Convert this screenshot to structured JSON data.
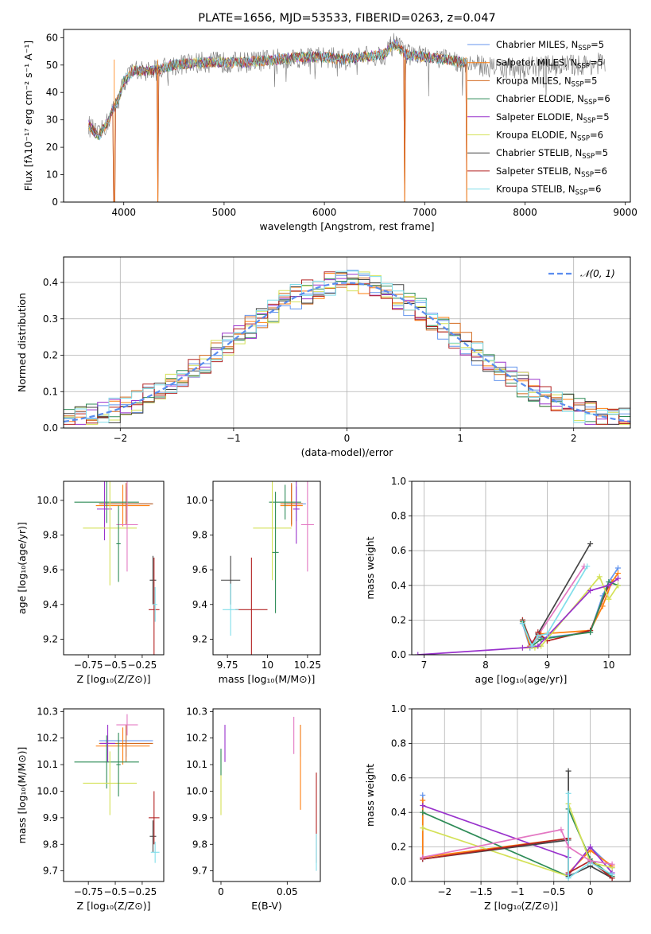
{
  "colors": [
    "#6495ed",
    "#ff7f0e",
    "#d2691e",
    "#2e8b57",
    "#9932cc",
    "#d4e157",
    "#444444",
    "#b22222",
    "#80deea",
    "#e377c2"
  ],
  "chart_data": [
    {
      "id": "spectrum",
      "type": "line",
      "title": "PLATE=1656, MJD=53533, FIBERID=0263, z=0.047",
      "xlabel": "wavelength [Angstrom, rest frame]",
      "ylabel": "Flux [fλ10⁻¹⁷ erg cm⁻² s⁻¹ A⁻¹]",
      "xlim": [
        3400,
        9050
      ],
      "ylim": [
        0,
        63
      ],
      "xticks": [
        4000,
        5000,
        6000,
        7000,
        8000,
        9000
      ],
      "yticks": [
        0,
        10,
        20,
        30,
        40,
        50,
        60
      ],
      "legend": "top-right",
      "series_names": [
        "Chabrier MILES, N",
        "Salpeter MILES, N",
        "Kroupa MILES, N",
        "Chabrier ELODIE, N",
        "Salpeter ELODIE, N",
        "Kroupa ELODIE, N",
        "Chabrier STELIB, N",
        "Salpeter STELIB, N",
        "Kroupa STELIB, N"
      ],
      "series_sub": "SSP",
      "series_n": [
        "=5",
        "=5",
        "=5",
        "=6",
        "=5",
        "=6",
        "=5",
        "=6",
        "=6"
      ],
      "continuum": [
        [
          3650,
          28
        ],
        [
          3750,
          24
        ],
        [
          3850,
          30
        ],
        [
          3950,
          38
        ],
        [
          4000,
          44
        ],
        [
          4100,
          48
        ],
        [
          4300,
          48
        ],
        [
          4500,
          50
        ],
        [
          4800,
          51
        ],
        [
          5000,
          51
        ],
        [
          5200,
          51
        ],
        [
          5500,
          52
        ],
        [
          5800,
          53
        ],
        [
          6000,
          53
        ],
        [
          6200,
          52
        ],
        [
          6400,
          53
        ],
        [
          6600,
          54
        ],
        [
          6700,
          58
        ],
        [
          6800,
          54
        ],
        [
          7000,
          53
        ],
        [
          7200,
          52
        ],
        [
          7400,
          51
        ],
        [
          7500,
          50
        ],
        [
          7800,
          49
        ],
        [
          8000,
          49
        ],
        [
          8300,
          50
        ],
        [
          8600,
          50
        ],
        [
          8800,
          51
        ]
      ],
      "data_range": [
        3650,
        8800
      ],
      "model_range": [
        3650,
        7420
      ],
      "drops": [
        3905,
        4340,
        6800,
        7420
      ]
    },
    {
      "id": "residuals",
      "type": "bar",
      "xlabel": "(data-model)/error",
      "ylabel": "Normed distribution",
      "xlim": [
        -2.5,
        2.5
      ],
      "ylim": [
        0,
        0.47
      ],
      "xticks": [
        -2,
        -1,
        0,
        1,
        2
      ],
      "yticks": [
        0.0,
        0.1,
        0.2,
        0.3,
        0.4
      ],
      "legend_label": "𝒩(0, 1)",
      "bin_width": 0.1
    },
    {
      "id": "age_vs_Z",
      "type": "scatter",
      "xlabel": "Z [log₁₀(Z/Z⊙)]",
      "ylabel": "age  [log₁₀(age/yr)]",
      "xlim": [
        -0.98,
        -0.05
      ],
      "ylim": [
        9.11,
        10.11
      ],
      "xticks": [
        -0.75,
        -0.5,
        -0.25
      ],
      "yticks": [
        9.2,
        9.4,
        9.6,
        9.8,
        10.0
      ],
      "points": [
        {
          "x": -0.4,
          "y": 9.98,
          "xerr": 0.25,
          "yerr": 0.1,
          "c": 0
        },
        {
          "x": -0.43,
          "y": 9.97,
          "xerr": 0.25,
          "yerr": 0.12,
          "c": 1
        },
        {
          "x": -0.4,
          "y": 9.98,
          "xerr": 0.25,
          "yerr": 0.12,
          "c": 2
        },
        {
          "x": -0.58,
          "y": 9.99,
          "xerr": 0.3,
          "yerr": 0.12,
          "c": 3
        },
        {
          "x": -0.6,
          "y": 9.95,
          "xerr": 0.07,
          "yerr": 0.18,
          "c": 4
        },
        {
          "x": -0.55,
          "y": 9.84,
          "xerr": 0.25,
          "yerr": 0.33,
          "c": 5
        },
        {
          "x": -0.15,
          "y": 9.54,
          "xerr": 0.03,
          "yerr": 0.14,
          "c": 6
        },
        {
          "x": -0.14,
          "y": 9.37,
          "xerr": 0.05,
          "yerr": 0.3,
          "c": 7
        },
        {
          "x": -0.13,
          "y": 9.4,
          "xerr": 0.02,
          "yerr": 0.1,
          "c": 8
        },
        {
          "x": -0.39,
          "y": 9.86,
          "xerr": 0.1,
          "yerr": 0.27,
          "c": 9
        },
        {
          "x": -0.47,
          "y": 9.75,
          "xerr": 0.02,
          "yerr": 0.22,
          "c": 3
        }
      ]
    },
    {
      "id": "age_vs_mass",
      "type": "scatter",
      "xlabel": "mass [log₁₀(M/M⊙)]",
      "ylabel": "",
      "xlim": [
        9.66,
        10.33
      ],
      "ylim": [
        9.11,
        10.11
      ],
      "xticks": [
        9.75,
        10.0,
        10.25
      ],
      "yticks": [
        9.2,
        9.4,
        9.6,
        9.8,
        10.0
      ],
      "points": [
        {
          "x": 10.18,
          "y": 9.98,
          "xerr": 0.06,
          "yerr": 0.1,
          "c": 0
        },
        {
          "x": 10.15,
          "y": 9.97,
          "xerr": 0.07,
          "yerr": 0.12,
          "c": 1
        },
        {
          "x": 10.15,
          "y": 9.98,
          "xerr": 0.07,
          "yerr": 0.12,
          "c": 2
        },
        {
          "x": 10.11,
          "y": 9.99,
          "xerr": 0.1,
          "yerr": 0.1,
          "c": 3
        },
        {
          "x": 10.18,
          "y": 9.95,
          "xerr": 0.02,
          "yerr": 0.2,
          "c": 4
        },
        {
          "x": 10.03,
          "y": 9.84,
          "xerr": 0.12,
          "yerr": 0.3,
          "c": 5
        },
        {
          "x": 9.77,
          "y": 9.54,
          "xerr": 0.06,
          "yerr": 0.14,
          "c": 6
        },
        {
          "x": 9.9,
          "y": 9.37,
          "xerr": 0.1,
          "yerr": 0.3,
          "c": 7
        },
        {
          "x": 9.77,
          "y": 9.37,
          "xerr": 0.05,
          "yerr": 0.15,
          "c": 8
        },
        {
          "x": 10.25,
          "y": 9.86,
          "xerr": 0.04,
          "yerr": 0.27,
          "c": 9
        },
        {
          "x": 10.05,
          "y": 9.7,
          "xerr": 0.02,
          "yerr": 0.35,
          "c": 3
        }
      ]
    },
    {
      "id": "massweight_vs_age",
      "type": "line",
      "xlabel": "age  [log₁₀(age/yr)]",
      "ylabel": "mass weight",
      "xlim": [
        6.8,
        10.35
      ],
      "ylim": [
        0,
        1.0
      ],
      "xticks": [
        7,
        8,
        9,
        10
      ],
      "yticks": [
        0.0,
        0.2,
        0.4,
        0.6,
        0.8,
        1.0
      ],
      "lines": [
        {
          "c": 6,
          "pts": [
            [
              8.6,
              0.2
            ],
            [
              8.75,
              0.05
            ],
            [
              8.85,
              0.12
            ],
            [
              9.7,
              0.64
            ]
          ]
        },
        {
          "c": 9,
          "pts": [
            [
              8.6,
              0.18
            ],
            [
              8.75,
              0.07
            ],
            [
              8.85,
              0.11
            ],
            [
              9.6,
              0.51
            ]
          ]
        },
        {
          "c": 0,
          "pts": [
            [
              8.6,
              0.18
            ],
            [
              8.72,
              0.04
            ],
            [
              8.85,
              0.1
            ],
            [
              9.0,
              0.1
            ],
            [
              9.7,
              0.13
            ],
            [
              9.9,
              0.34
            ],
            [
              10.0,
              0.42
            ],
            [
              10.15,
              0.5
            ]
          ]
        },
        {
          "c": 1,
          "pts": [
            [
              8.6,
              0.19
            ],
            [
              8.72,
              0.05
            ],
            [
              8.9,
              0.12
            ],
            [
              9.7,
              0.14
            ],
            [
              9.9,
              0.28
            ],
            [
              10.05,
              0.42
            ],
            [
              10.15,
              0.47
            ]
          ]
        },
        {
          "c": 7,
          "pts": [
            [
              8.6,
              0.2
            ],
            [
              8.75,
              0.06
            ],
            [
              8.85,
              0.13
            ],
            [
              9.0,
              0.08
            ],
            [
              9.7,
              0.14
            ],
            [
              10.0,
              0.4
            ],
            [
              10.15,
              0.44
            ]
          ]
        },
        {
          "c": 3,
          "pts": [
            [
              8.6,
              0.19
            ],
            [
              8.75,
              0.05
            ],
            [
              8.9,
              0.09
            ],
            [
              9.7,
              0.13
            ],
            [
              10.0,
              0.42
            ],
            [
              10.15,
              0.4
            ]
          ]
        },
        {
          "c": 5,
          "pts": [
            [
              8.6,
              0.04
            ],
            [
              8.8,
              0.04
            ],
            [
              8.9,
              0.05
            ],
            [
              9.85,
              0.45
            ],
            [
              10.0,
              0.32
            ],
            [
              10.15,
              0.4
            ]
          ]
        },
        {
          "c": 4,
          "pts": [
            [
              6.9,
              0.0
            ],
            [
              8.6,
              0.04
            ],
            [
              8.85,
              0.05
            ],
            [
              9.7,
              0.37
            ],
            [
              10.0,
              0.4
            ],
            [
              10.15,
              0.44
            ]
          ]
        },
        {
          "c": 8,
          "pts": [
            [
              8.6,
              0.18
            ],
            [
              8.75,
              0.05
            ],
            [
              8.85,
              0.11
            ],
            [
              9.0,
              0.12
            ],
            [
              9.65,
              0.51
            ]
          ]
        }
      ]
    },
    {
      "id": "mass_vs_Z",
      "type": "scatter",
      "xlabel": "Z [log₁₀(Z/Z⊙)]",
      "ylabel": "mass [log₁₀(M/M⊙)]",
      "xlim": [
        -0.98,
        -0.05
      ],
      "ylim": [
        9.66,
        10.31
      ],
      "xticks": [
        -0.75,
        -0.5,
        -0.25
      ],
      "yticks": [
        9.7,
        9.8,
        9.9,
        10.0,
        10.1,
        10.2,
        10.3
      ],
      "points": [
        {
          "x": -0.4,
          "y": 10.19,
          "xerr": 0.25,
          "yerr": 0.06,
          "c": 0
        },
        {
          "x": -0.43,
          "y": 10.17,
          "xerr": 0.25,
          "yerr": 0.07,
          "c": 1
        },
        {
          "x": -0.4,
          "y": 10.18,
          "xerr": 0.25,
          "yerr": 0.07,
          "c": 2
        },
        {
          "x": -0.58,
          "y": 10.11,
          "xerr": 0.3,
          "yerr": 0.1,
          "c": 3
        },
        {
          "x": -0.57,
          "y": 10.18,
          "xerr": 0.07,
          "yerr": 0.07,
          "c": 4
        },
        {
          "x": -0.55,
          "y": 10.03,
          "xerr": 0.25,
          "yerr": 0.12,
          "c": 5
        },
        {
          "x": -0.15,
          "y": 9.83,
          "xerr": 0.03,
          "yerr": 0.06,
          "c": 6
        },
        {
          "x": -0.14,
          "y": 9.9,
          "xerr": 0.05,
          "yerr": 0.1,
          "c": 7
        },
        {
          "x": -0.13,
          "y": 9.77,
          "xerr": 0.04,
          "yerr": 0.04,
          "c": 8
        },
        {
          "x": -0.39,
          "y": 10.25,
          "xerr": 0.1,
          "yerr": 0.04,
          "c": 9
        },
        {
          "x": -0.47,
          "y": 10.1,
          "xerr": 0.02,
          "yerr": 0.12,
          "c": 3
        }
      ]
    },
    {
      "id": "mass_vs_ebv",
      "type": "scatter",
      "xlabel": "E(B-V)",
      "ylabel": "",
      "xlim": [
        -0.006,
        0.075
      ],
      "ylim": [
        9.66,
        10.31
      ],
      "xticks": [
        0.0,
        0.05
      ],
      "yticks": [
        9.7,
        9.8,
        9.9,
        10.0,
        10.1,
        10.2,
        10.3
      ],
      "points": [
        {
          "x": 0.06,
          "y": 10.19,
          "xerr": 0,
          "yerr": 0.06,
          "c": 0
        },
        {
          "x": 0.06,
          "y": 10.09,
          "xerr": 0,
          "yerr": 0.16,
          "c": 1
        },
        {
          "x": 0.055,
          "y": 10.21,
          "xerr": 0,
          "yerr": 0.07,
          "c": 9
        },
        {
          "x": 0.003,
          "y": 10.18,
          "xerr": 0,
          "yerr": 0.07,
          "c": 4
        },
        {
          "x": 0.0,
          "y": 10.03,
          "xerr": 0,
          "yerr": 0.12,
          "c": 5
        },
        {
          "x": 0.072,
          "y": 9.9,
          "xerr": 0,
          "yerr": 0.17,
          "c": 7
        },
        {
          "x": 0.072,
          "y": 9.77,
          "xerr": 0,
          "yerr": 0.07,
          "c": 8
        },
        {
          "x": 0.0,
          "y": 10.11,
          "xerr": 0,
          "yerr": 0.05,
          "c": 3
        }
      ]
    },
    {
      "id": "massweight_vs_Z",
      "type": "line",
      "xlabel": "Z [log₁₀(Z/Z⊙)]",
      "ylabel": "mass weight",
      "xlim": [
        -2.45,
        0.55
      ],
      "ylim": [
        0,
        1.0
      ],
      "xticks": [
        -2.0,
        -1.5,
        -1.0,
        -0.5,
        0.0
      ],
      "yticks": [
        0.0,
        0.2,
        0.4,
        0.6,
        0.8,
        1.0
      ],
      "lines": [
        {
          "c": 0,
          "pts": [
            [
              -2.3,
              0.5
            ],
            [
              -2.3,
              0.13
            ],
            [
              -0.3,
              0.25
            ],
            [
              -0.3,
              0.04
            ],
            [
              0.0,
              0.2
            ],
            [
              0.3,
              0.08
            ]
          ]
        },
        {
          "c": 1,
          "pts": [
            [
              -2.3,
              0.47
            ],
            [
              -2.3,
              0.14
            ],
            [
              -0.3,
              0.25
            ],
            [
              -0.3,
              0.05
            ],
            [
              0.0,
              0.18
            ],
            [
              0.3,
              0.09
            ]
          ]
        },
        {
          "c": 3,
          "pts": [
            [
              -2.3,
              0.4
            ],
            [
              -0.3,
              0.03
            ],
            [
              -0.3,
              0.42
            ],
            [
              0.0,
              0.13
            ],
            [
              0.3,
              0.03
            ]
          ]
        },
        {
          "c": 4,
          "pts": [
            [
              -2.3,
              0.44
            ],
            [
              -0.3,
              0.14
            ],
            [
              -0.3,
              0.04
            ],
            [
              0.0,
              0.2
            ],
            [
              0.3,
              0.05
            ]
          ]
        },
        {
          "c": 5,
          "pts": [
            [
              -2.3,
              0.31
            ],
            [
              -0.3,
              0.03
            ],
            [
              -0.3,
              0.45
            ],
            [
              0.0,
              0.11
            ],
            [
              0.3,
              0.08
            ]
          ]
        },
        {
          "c": 6,
          "pts": [
            [
              -2.3,
              0.13
            ],
            [
              -0.3,
              0.24
            ],
            [
              -0.3,
              0.64
            ],
            [
              -0.3,
              0.03
            ],
            [
              0.0,
              0.09
            ],
            [
              0.3,
              0.02
            ]
          ]
        },
        {
          "c": 7,
          "pts": [
            [
              -2.3,
              0.13
            ],
            [
              -0.3,
              0.25
            ],
            [
              -0.3,
              0.05
            ],
            [
              0.0,
              0.12
            ],
            [
              0.3,
              0.02
            ]
          ]
        },
        {
          "c": 8,
          "pts": [
            [
              -0.3,
              0.51
            ],
            [
              -0.3,
              0.02
            ],
            [
              0.0,
              0.11
            ],
            [
              0.3,
              0.04
            ]
          ]
        },
        {
          "c": 9,
          "pts": [
            [
              -2.3,
              0.14
            ],
            [
              -0.4,
              0.3
            ],
            [
              -0.3,
              0.2
            ],
            [
              0.0,
              0.12
            ],
            [
              0.3,
              0.1
            ]
          ]
        }
      ]
    }
  ]
}
